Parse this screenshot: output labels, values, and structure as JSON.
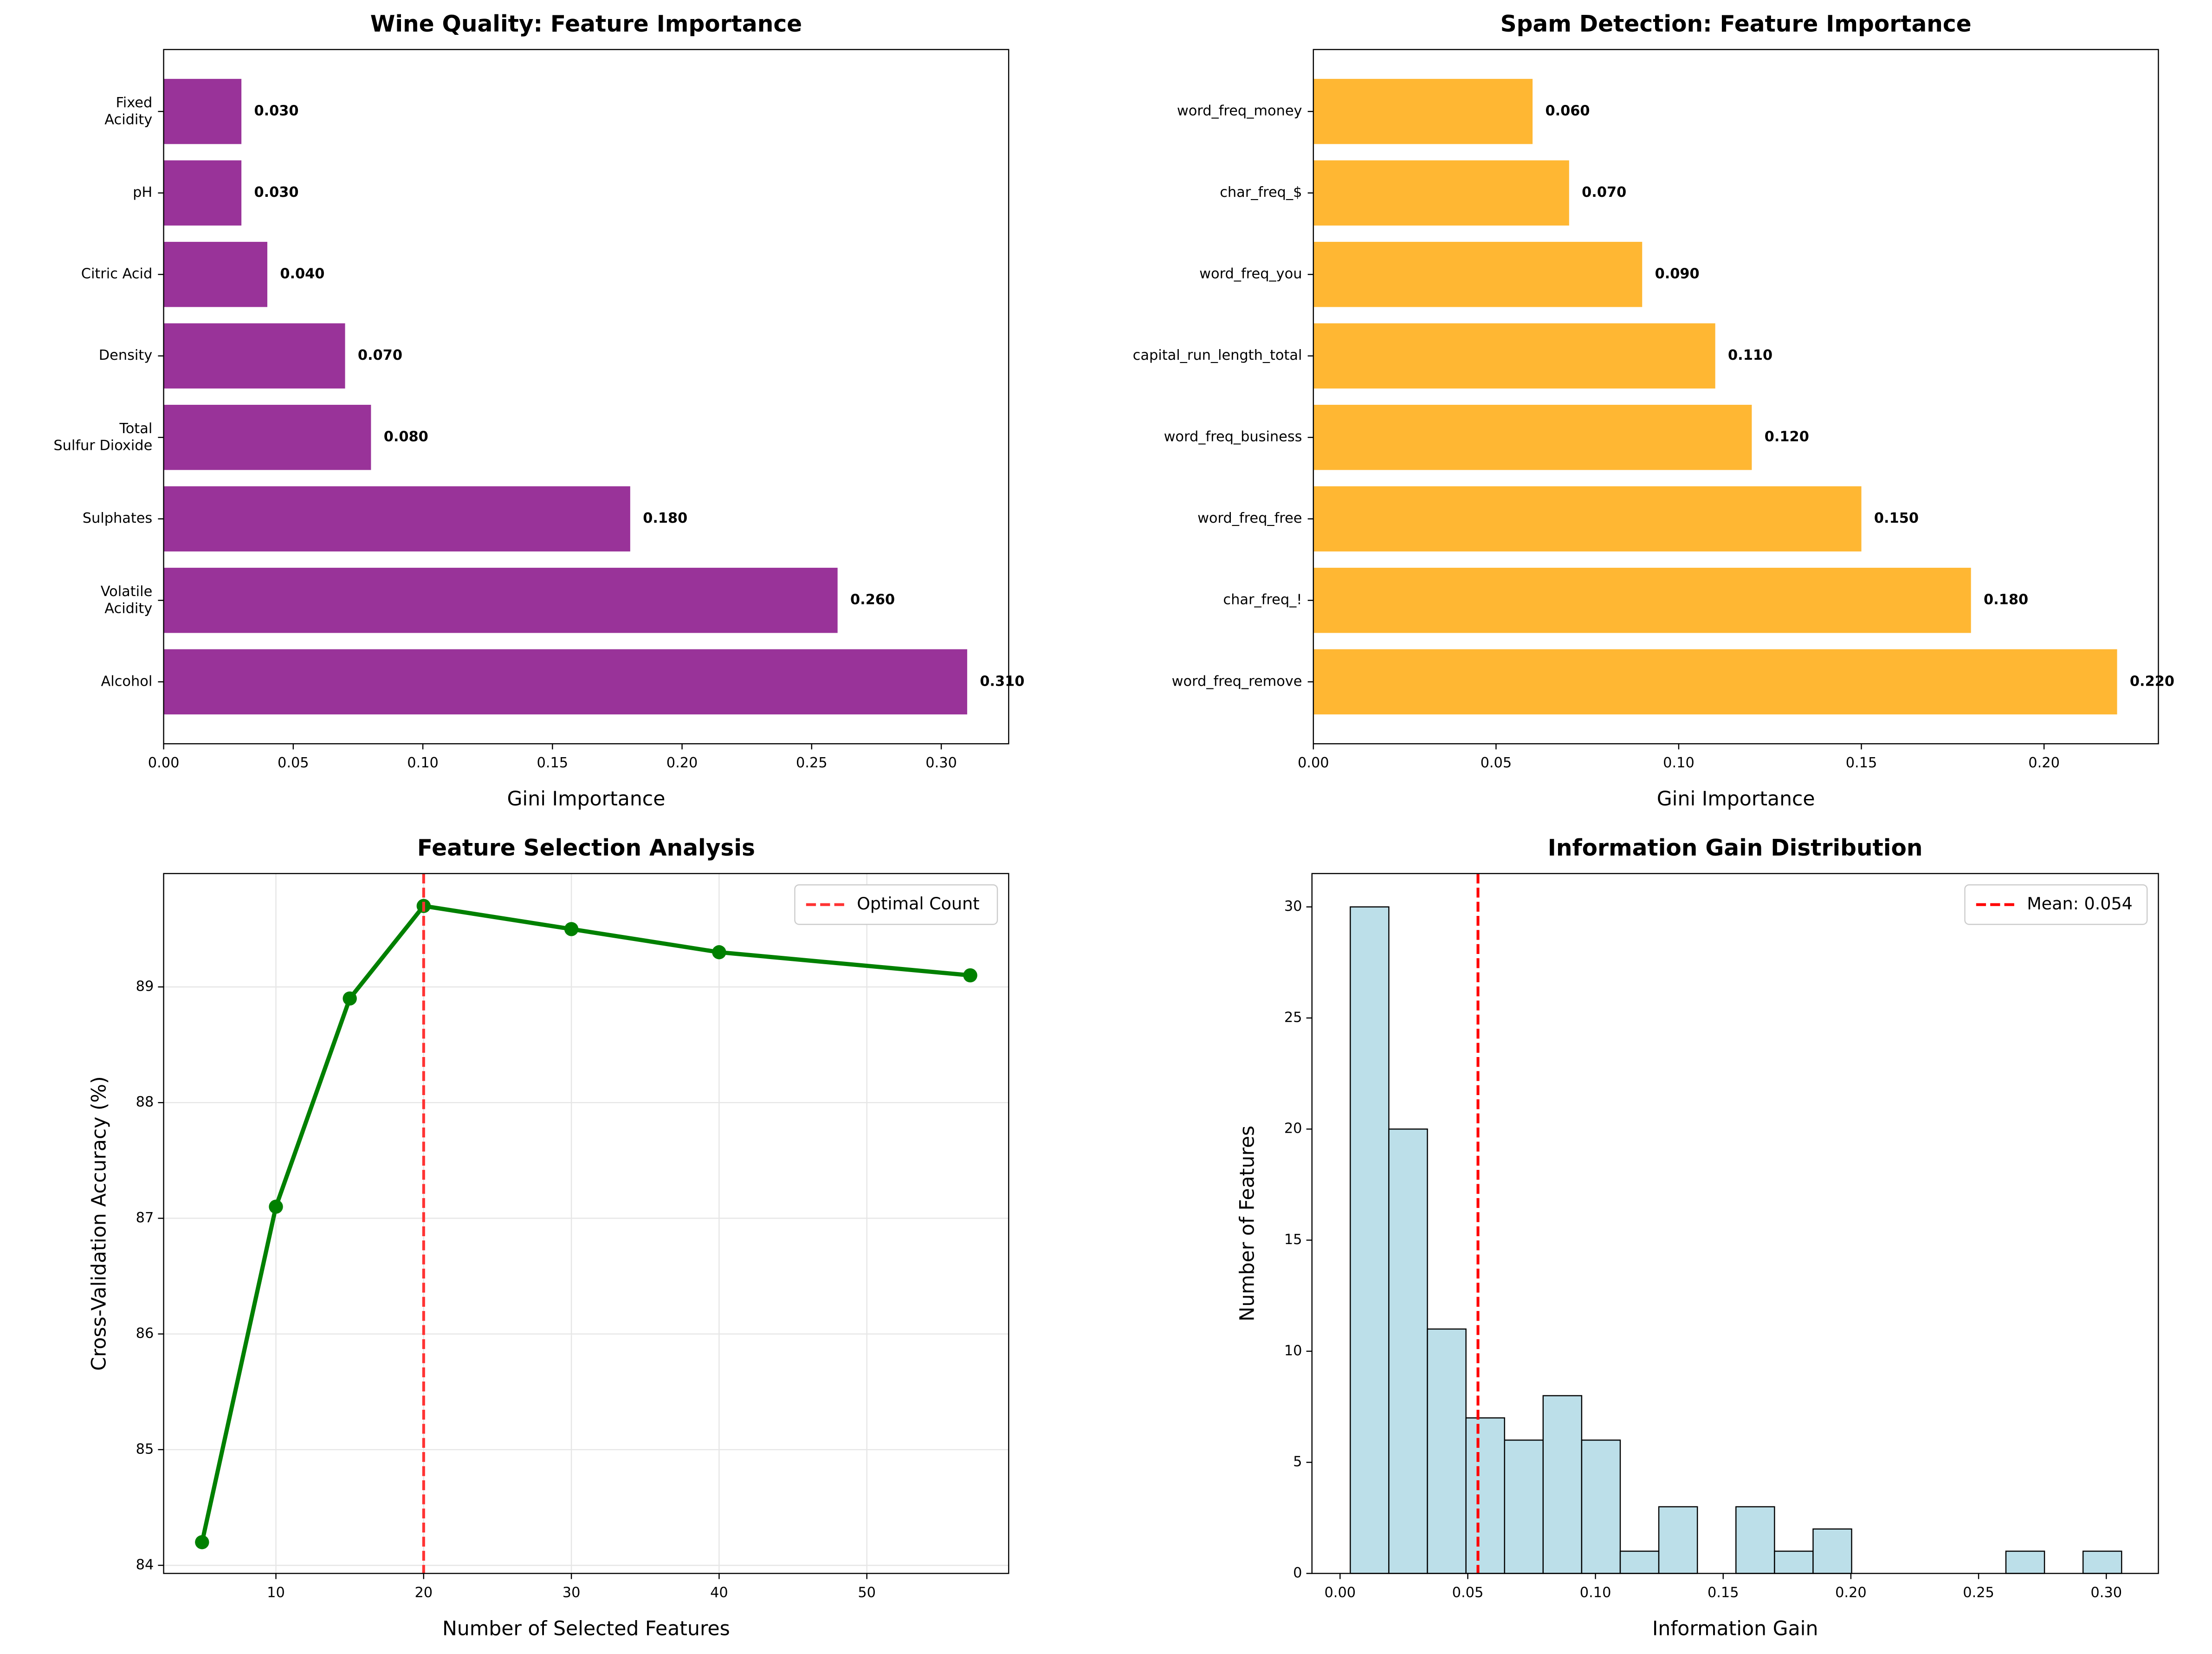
{
  "chart_data": [
    {
      "type": "barh",
      "title": "Wine Quality: Feature Importance",
      "xlabel": "Gini Importance",
      "categories": [
        "Alcohol",
        "Volatile\nAcidity",
        "Sulphates",
        "Total\nSulfur Dioxide",
        "Density",
        "Citric Acid",
        "pH",
        "Fixed\nAcidity"
      ],
      "values": [
        0.31,
        0.26,
        0.18,
        0.08,
        0.07,
        0.04,
        0.03,
        0.03
      ],
      "value_labels": [
        "0.310",
        "0.260",
        "0.180",
        "0.080",
        "0.070",
        "0.040",
        "0.030",
        "0.030"
      ],
      "color": "#993399",
      "xlim": [
        0,
        0.326
      ],
      "xticks": [
        {
          "value": 0,
          "label": "0.00"
        },
        {
          "value": 0.05,
          "label": "0.05"
        },
        {
          "value": 0.1,
          "label": "0.10"
        },
        {
          "value": 0.15,
          "label": "0.15"
        },
        {
          "value": 0.2,
          "label": "0.20"
        },
        {
          "value": 0.25,
          "label": "0.25"
        },
        {
          "value": 0.3,
          "label": "0.30"
        }
      ]
    },
    {
      "type": "barh",
      "title": "Spam Detection: Feature Importance",
      "xlabel": "Gini Importance",
      "categories": [
        "word_freq_remove",
        "char_freq_!",
        "word_freq_free",
        "word_freq_business",
        "capital_run_length_total",
        "word_freq_you",
        "char_freq_$",
        "word_freq_money"
      ],
      "values": [
        0.22,
        0.18,
        0.15,
        0.12,
        0.11,
        0.09,
        0.07,
        0.06
      ],
      "value_labels": [
        "0.220",
        "0.180",
        "0.150",
        "0.120",
        "0.110",
        "0.090",
        "0.070",
        "0.060"
      ],
      "color": "#ffb733",
      "xlim": [
        0,
        0.2313
      ],
      "xticks": [
        {
          "value": 0,
          "label": "0.00"
        },
        {
          "value": 0.05,
          "label": "0.05"
        },
        {
          "value": 0.1,
          "label": "0.10"
        },
        {
          "value": 0.15,
          "label": "0.15"
        },
        {
          "value": 0.2,
          "label": "0.20"
        }
      ]
    },
    {
      "type": "line",
      "title": "Feature Selection Analysis",
      "xlabel": "Number of Selected Features",
      "ylabel": "Cross-Validation Accuracy (%)",
      "x": [
        5,
        10,
        15,
        20,
        30,
        40,
        57
      ],
      "values": [
        84.2,
        87.1,
        88.9,
        89.7,
        89.5,
        89.3,
        89.1
      ],
      "color": "#008000",
      "xlim": [
        2.4,
        59.6
      ],
      "ylim": [
        83.93,
        89.98
      ],
      "xticks": [
        10,
        20,
        30,
        40,
        50
      ],
      "yticks": [
        84,
        85,
        86,
        87,
        88,
        89
      ],
      "grid": true,
      "reference_line": {
        "value": 20,
        "label": "Optimal Count",
        "color": "#ff3333"
      },
      "legend": "upper right"
    },
    {
      "type": "histogram",
      "title": "Information Gain Distribution",
      "xlabel": "Information Gain",
      "ylabel": "Number of Features",
      "bins": [
        0.004,
        0.0191,
        0.0342,
        0.0493,
        0.0644,
        0.0795,
        0.0946,
        0.1097,
        0.1248,
        0.1399,
        0.155,
        0.1701,
        0.1852,
        0.2003,
        0.2154,
        0.2305,
        0.2456,
        0.2607,
        0.2758,
        0.2909,
        0.306
      ],
      "counts": [
        30,
        20,
        11,
        7,
        6,
        8,
        6,
        1,
        3,
        0,
        3,
        1,
        2,
        0,
        0,
        0,
        0,
        1,
        0,
        1
      ],
      "color": "#bcdfe9",
      "xlim": [
        -0.011,
        0.3204
      ],
      "ylim": [
        0,
        31.5
      ],
      "xticks": [
        {
          "value": 0,
          "label": "0.00"
        },
        {
          "value": 0.05,
          "label": "0.05"
        },
        {
          "value": 0.1,
          "label": "0.10"
        },
        {
          "value": 0.15,
          "label": "0.15"
        },
        {
          "value": 0.2,
          "label": "0.20"
        },
        {
          "value": 0.25,
          "label": "0.25"
        },
        {
          "value": 0.3,
          "label": "0.30"
        }
      ],
      "yticks": [
        0,
        5,
        10,
        15,
        20,
        25,
        30
      ],
      "reference_line": {
        "value": 0.054,
        "label": "Mean: 0.054",
        "color": "#ff0000"
      },
      "legend": "upper right"
    }
  ]
}
